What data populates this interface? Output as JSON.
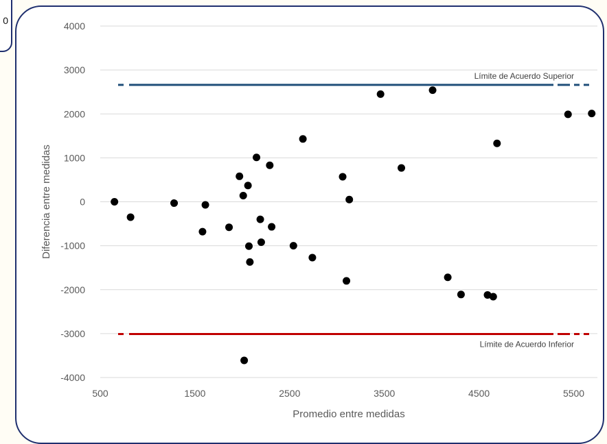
{
  "fragment_label": "0",
  "chart_data": {
    "type": "scatter",
    "xlabel": "Promedio entre medidas",
    "ylabel": "Diferencia entre medidas",
    "xlim": [
      500,
      5750
    ],
    "ylim": [
      -4000,
      4000
    ],
    "x_ticks": [
      500,
      1500,
      2500,
      3500,
      4500,
      5500
    ],
    "y_ticks": [
      4000,
      3000,
      2000,
      1000,
      0,
      -1000,
      -2000,
      -3000,
      -4000
    ],
    "grid": "horizontal",
    "point_color": "#000000",
    "points": [
      [
        650,
        0
      ],
      [
        820,
        -350
      ],
      [
        1280,
        -30
      ],
      [
        1580,
        -680
      ],
      [
        1610,
        -70
      ],
      [
        1860,
        -580
      ],
      [
        1970,
        580
      ],
      [
        2010,
        140
      ],
      [
        2020,
        -3610
      ],
      [
        2060,
        370
      ],
      [
        2070,
        -1010
      ],
      [
        2080,
        -1370
      ],
      [
        2150,
        1010
      ],
      [
        2190,
        -400
      ],
      [
        2200,
        -920
      ],
      [
        2290,
        830
      ],
      [
        2310,
        -570
      ],
      [
        2540,
        -1000
      ],
      [
        2640,
        1430
      ],
      [
        2740,
        -1270
      ],
      [
        3060,
        570
      ],
      [
        3100,
        -1800
      ],
      [
        3130,
        50
      ],
      [
        3460,
        2450
      ],
      [
        3680,
        770
      ],
      [
        4010,
        2540
      ],
      [
        4170,
        -1720
      ],
      [
        4310,
        -2110
      ],
      [
        4590,
        -2120
      ],
      [
        4650,
        -2160
      ],
      [
        4690,
        1330
      ],
      [
        5440,
        1990
      ],
      [
        5690,
        2010
      ]
    ],
    "reference_lines": [
      {
        "value": 2660,
        "color": "#1f4e79",
        "label": "Límite de Acuerdo Superior"
      },
      {
        "value": -3010,
        "color": "#c00000",
        "label": "Límite de Acuerdo Inferior"
      }
    ]
  }
}
